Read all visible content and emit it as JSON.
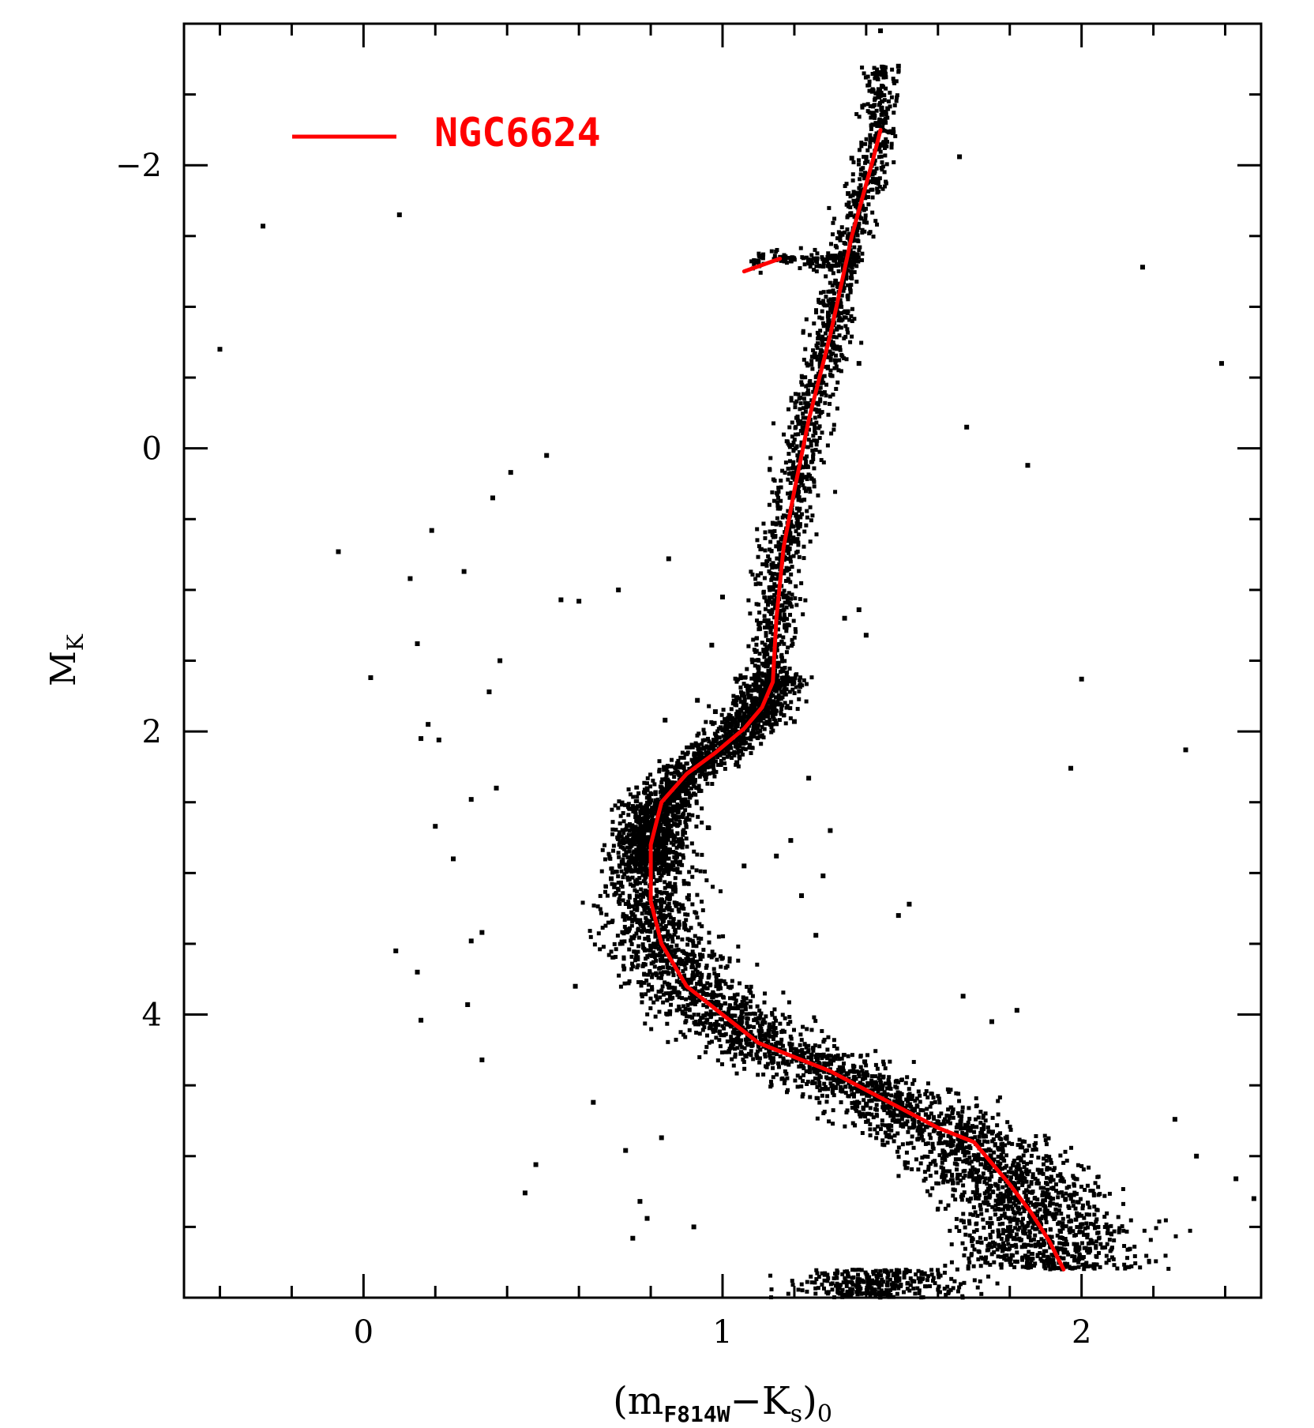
{
  "chart_data": {
    "type": "scatter",
    "title": "",
    "xlabel": {
      "main": "(m",
      "sub1": "F814W",
      "mid": "−K",
      "sub2": "s",
      "close": ")",
      "sub3": "0"
    },
    "ylabel": {
      "main": "M",
      "sub": "K"
    },
    "xlim": [
      -0.5,
      2.5
    ],
    "ylim": [
      -3.0,
      6.0
    ],
    "y_inverted": true,
    "x_ticks": [
      0,
      1,
      2
    ],
    "x_tick_labels": [
      "0",
      "1",
      "2"
    ],
    "x_minor_step": 0.2,
    "y_ticks": [
      -2,
      0,
      2,
      4
    ],
    "y_tick_labels": [
      "−2",
      "0",
      "2",
      "4"
    ],
    "y_minor_step": 0.5,
    "grid": false,
    "legend": {
      "placement": "top-left",
      "entries": [
        {
          "label": "NGC6624",
          "color": "#ff0000"
        }
      ]
    },
    "series": [
      {
        "name": "NGC6624",
        "kind": "line",
        "color": "#ff0000",
        "x": [
          1.95,
          1.91,
          1.86,
          1.8,
          1.7,
          1.6,
          1.45,
          1.3,
          1.1,
          1.0,
          0.9,
          0.83,
          0.8,
          0.8,
          0.83,
          0.9,
          0.98,
          1.06,
          1.11,
          1.14,
          1.15,
          1.17,
          1.2,
          1.24,
          1.3,
          1.36,
          1.42,
          1.44
        ],
        "y": [
          5.8,
          5.6,
          5.4,
          5.2,
          4.9,
          4.8,
          4.6,
          4.4,
          4.2,
          4.0,
          3.8,
          3.5,
          3.2,
          2.8,
          2.5,
          2.3,
          2.15,
          1.98,
          1.83,
          1.65,
          1.2,
          0.7,
          0.3,
          -0.2,
          -0.8,
          -1.5,
          -2.05,
          -2.25
        ]
      },
      {
        "name": "",
        "kind": "line",
        "color": "#ff0000",
        "x": [
          1.06,
          1.16
        ],
        "y": [
          -1.25,
          -1.34
        ]
      },
      {
        "name": "stars",
        "kind": "scatter",
        "color": "#000000",
        "x": [
          -0.28,
          0.1,
          -0.07,
          0.02,
          -0.4,
          0.19,
          0.28,
          0.36,
          0.41,
          0.51,
          0.38,
          0.35,
          0.13,
          0.15,
          0.18,
          0.16,
          0.2,
          0.29,
          0.3,
          0.25,
          0.33,
          0.37,
          0.15,
          0.16,
          0.09,
          0.21,
          0.33,
          0.3,
          0.45,
          0.48,
          0.55,
          0.6,
          0.71,
          0.85,
          1.0,
          0.84,
          0.91,
          1.06,
          0.97,
          1.1,
          1.36,
          1.38,
          1.44,
          1.46,
          1.35,
          1.43,
          1.49,
          1.68,
          1.66,
          1.85,
          2.0,
          1.97,
          2.17,
          2.29,
          2.39,
          2.32,
          2.43,
          1.67,
          1.75,
          1.82,
          2.26,
          2.48,
          1.34,
          1.4,
          1.38,
          1.2,
          1.24,
          1.3,
          1.06,
          1.52,
          1.49,
          0.79,
          0.75,
          0.83,
          0.92,
          0.59,
          0.64,
          0.73,
          0.77,
          0.69,
          0.96,
          0.98,
          0.93,
          1.04,
          1.19,
          1.26,
          1.28,
          1.15,
          1.22
        ],
        "y": [
          -1.57,
          -1.65,
          0.73,
          1.62,
          -0.7,
          0.58,
          0.87,
          0.35,
          0.17,
          0.05,
          1.5,
          1.72,
          0.92,
          1.38,
          1.95,
          2.05,
          2.67,
          3.93,
          3.48,
          2.9,
          3.42,
          2.4,
          3.7,
          4.04,
          3.55,
          2.06,
          4.32,
          2.48,
          5.26,
          5.06,
          1.07,
          1.08,
          1.0,
          0.78,
          1.05,
          1.92,
          2.36,
          2.08,
          1.39,
          1.55,
          -2.05,
          -0.6,
          -2.95,
          -2.4,
          -1.8,
          -1.9,
          -2.7,
          -0.15,
          -2.06,
          0.12,
          1.63,
          2.26,
          -1.28,
          2.13,
          -0.6,
          5.0,
          5.16,
          3.87,
          4.05,
          3.97,
          4.74,
          5.3,
          1.2,
          1.32,
          1.14,
          1.93,
          2.33,
          2.7,
          2.95,
          3.22,
          3.3,
          5.44,
          5.58,
          4.87,
          5.5,
          3.8,
          4.62,
          4.96,
          5.32,
          3.04,
          2.68,
          1.86,
          1.78,
          2.22,
          2.77,
          3.44,
          3.02,
          2.88,
          3.16
        ]
      }
    ]
  }
}
